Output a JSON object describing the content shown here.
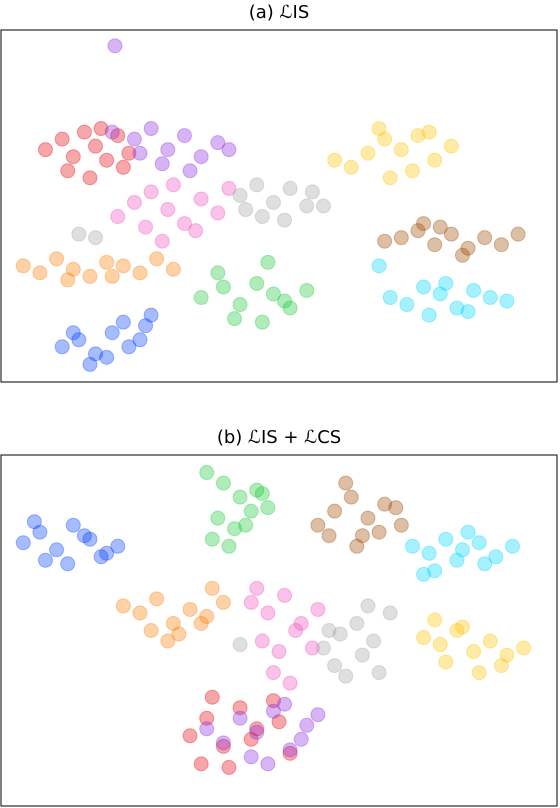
{
  "chart_data": [
    {
      "type": "scatter",
      "title": "(a) ℒIS",
      "xlim": [
        0,
        100
      ],
      "ylim": [
        0,
        100
      ],
      "series": [
        {
          "color": "#e8000b",
          "x": [
            8,
            11,
            13,
            15,
            17,
            19,
            21,
            23,
            12,
            16,
            18,
            22
          ],
          "y": [
            66,
            69,
            64,
            71,
            67,
            63,
            70,
            65,
            60,
            58,
            72,
            61
          ]
        },
        {
          "color": "#8b2be2",
          "x": [
            20.5,
            20,
            24,
            27,
            30,
            33,
            36,
            39,
            29,
            34,
            41,
            25
          ],
          "y": [
            95.5,
            71,
            69,
            72,
            66,
            70,
            64,
            68,
            62,
            60,
            66,
            65
          ]
        },
        {
          "color": "#f14cc1",
          "x": [
            21,
            24,
            27,
            30,
            33,
            36,
            39,
            26,
            31,
            35,
            41,
            29
          ],
          "y": [
            47,
            51,
            54,
            49,
            45,
            52,
            48,
            44,
            56,
            43,
            55,
            40
          ]
        },
        {
          "color": "#a3a3a3",
          "x": [
            14,
            17,
            43,
            46,
            49,
            52,
            55,
            47,
            51,
            44,
            56,
            58
          ],
          "y": [
            42,
            41,
            53,
            56,
            51,
            55,
            50,
            47,
            46,
            49,
            54,
            50
          ]
        },
        {
          "color": "#ff7c00",
          "x": [
            4,
            7,
            10,
            13,
            16,
            19,
            22,
            25,
            28,
            31,
            12,
            20
          ],
          "y": [
            33,
            31,
            35,
            32,
            30,
            34,
            33,
            31,
            35,
            32,
            29,
            30
          ]
        },
        {
          "color": "#023eff",
          "x": [
            11,
            14,
            17,
            20,
            23,
            26,
            16,
            19,
            22,
            25,
            13,
            27
          ],
          "y": [
            10,
            12,
            8,
            14,
            10,
            16,
            5,
            7,
            17,
            12,
            14,
            19
          ]
        },
        {
          "color": "#1ac938",
          "x": [
            36,
            40,
            43,
            46,
            49,
            52,
            55,
            42,
            47,
            51,
            39,
            48
          ],
          "y": [
            24,
            27,
            22,
            28,
            25,
            21,
            26,
            18,
            17,
            23,
            31,
            34
          ]
        },
        {
          "color": "#ffc400",
          "x": [
            60,
            63,
            66,
            69,
            72,
            75,
            78,
            81,
            70,
            74,
            68,
            77
          ],
          "y": [
            63,
            61,
            65,
            69,
            66,
            70,
            63,
            67,
            58,
            60,
            72,
            71
          ]
        },
        {
          "color": "#9f4800",
          "x": [
            69,
            72,
            75,
            78,
            81,
            84,
            87,
            90,
            93,
            79,
            83,
            76
          ],
          "y": [
            40,
            41,
            43,
            39,
            42,
            38,
            41,
            39,
            42,
            44,
            36,
            45
          ]
        },
        {
          "color": "#00d7ff",
          "x": [
            70,
            73,
            76,
            79,
            82,
            85,
            88,
            91,
            77,
            84,
            80,
            68
          ],
          "y": [
            24,
            22,
            27,
            25,
            21,
            26,
            24,
            23,
            19,
            20,
            28,
            33
          ]
        }
      ]
    },
    {
      "type": "scatter",
      "title": "(b) ℒIS + ℒCS",
      "xlim": [
        0,
        100
      ],
      "ylim": [
        0,
        100
      ],
      "series": [
        {
          "color": "#023eff",
          "x": [
            4,
            7,
            10,
            13,
            16,
            19,
            8,
            12,
            15,
            21,
            6,
            18
          ],
          "y": [
            75,
            78,
            73,
            80,
            76,
            72,
            70,
            69,
            77,
            74,
            81,
            71
          ]
        },
        {
          "color": "#1ac938",
          "x": [
            37,
            40,
            43,
            46,
            48,
            39,
            42,
            45,
            38,
            44,
            41,
            47
          ],
          "y": [
            95,
            92,
            88,
            90,
            85,
            82,
            79,
            84,
            76,
            80,
            74,
            89
          ]
        },
        {
          "color": "#9f4800",
          "x": [
            57,
            60,
            63,
            66,
            69,
            72,
            62,
            65,
            68,
            59,
            64,
            71
          ],
          "y": [
            80,
            84,
            88,
            82,
            86,
            80,
            92,
            77,
            78,
            77,
            74,
            85
          ]
        },
        {
          "color": "#00d7ff",
          "x": [
            74,
            77,
            80,
            83,
            86,
            89,
            92,
            78,
            82,
            87,
            76,
            84
          ],
          "y": [
            74,
            72,
            76,
            73,
            75,
            71,
            74,
            67,
            70,
            69,
            66,
            78
          ]
        },
        {
          "color": "#ff7c00",
          "x": [
            22,
            25,
            28,
            31,
            34,
            37,
            40,
            27,
            32,
            36,
            30,
            38
          ],
          "y": [
            57,
            55,
            59,
            52,
            56,
            54,
            58,
            50,
            49,
            52,
            47,
            62
          ]
        },
        {
          "color": "#f14cc1",
          "x": [
            45,
            48,
            51,
            54,
            57,
            47,
            50,
            53,
            56,
            49,
            52,
            46
          ],
          "y": [
            58,
            55,
            60,
            52,
            56,
            47,
            44,
            50,
            45,
            38,
            35,
            62
          ]
        },
        {
          "color": "#a3a3a3",
          "x": [
            43,
            58,
            61,
            64,
            67,
            70,
            60,
            65,
            68,
            62,
            66,
            59
          ],
          "y": [
            46,
            45,
            49,
            52,
            47,
            55,
            40,
            43,
            38,
            37,
            57,
            50
          ]
        },
        {
          "color": "#ffc400",
          "x": [
            76,
            79,
            82,
            85,
            88,
            91,
            94,
            80,
            86,
            90,
            78,
            83
          ],
          "y": [
            48,
            46,
            50,
            44,
            47,
            43,
            45,
            41,
            38,
            40,
            53,
            51
          ]
        },
        {
          "color": "#e8000b",
          "x": [
            34,
            37,
            40,
            43,
            46,
            49,
            52,
            36,
            41,
            45,
            38,
            50
          ],
          "y": [
            20,
            25,
            17,
            28,
            22,
            30,
            15,
            12,
            11,
            19,
            31,
            24
          ]
        },
        {
          "color": "#8b2be2",
          "x": [
            40,
            43,
            46,
            49,
            52,
            55,
            45,
            48,
            51,
            54,
            57,
            37
          ],
          "y": [
            18,
            25,
            21,
            27,
            16,
            23,
            14,
            12,
            29,
            19,
            26,
            22
          ]
        }
      ]
    }
  ]
}
